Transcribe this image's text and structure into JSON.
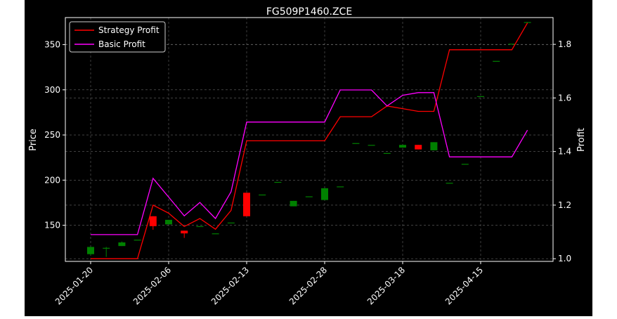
{
  "chart_data": {
    "type": "candlestick+line",
    "title": "FG509P1460.ZCE",
    "ylabel_left": "Price",
    "ylabel_right": "Profit",
    "ylim_left": [
      110,
      380
    ],
    "ylim_right": [
      0.99,
      1.9
    ],
    "yticks_left": [
      150,
      200,
      250,
      300,
      350
    ],
    "yticks_right": [
      1.0,
      1.2,
      1.4,
      1.6,
      1.8
    ],
    "grid": true,
    "legend_position": "upper-left",
    "x_tick_labels": [
      {
        "idx": 0,
        "label": "2025-01-20"
      },
      {
        "idx": 5,
        "label": "2025-02-06"
      },
      {
        "idx": 10,
        "label": "2025-02-13"
      },
      {
        "idx": 15,
        "label": "2025-02-28"
      },
      {
        "idx": 20,
        "label": "2025-03-18"
      },
      {
        "idx": 25,
        "label": "2025-04-15"
      }
    ],
    "candles": [
      {
        "open": 118,
        "high": 126,
        "low": 117,
        "close": 126
      },
      {
        "open": 125,
        "high": 126,
        "low": 115,
        "close": 125
      },
      {
        "open": 127,
        "high": 132,
        "low": 127,
        "close": 131
      },
      {
        "open": 134,
        "high": 134,
        "low": 134,
        "close": 134
      },
      {
        "open": 160,
        "high": 160,
        "low": 145,
        "close": 149
      },
      {
        "open": 151,
        "high": 156,
        "low": 151,
        "close": 156
      },
      {
        "open": 144,
        "high": 144,
        "low": 136,
        "close": 141
      },
      {
        "open": 149,
        "high": 149,
        "low": 149,
        "close": 149
      },
      {
        "open": 141,
        "high": 141,
        "low": 141,
        "close": 141
      },
      {
        "open": 153,
        "high": 153,
        "low": 153,
        "close": 153
      },
      {
        "open": 186,
        "high": 186,
        "low": 160,
        "close": 160
      },
      {
        "open": 184,
        "high": 184,
        "low": 184,
        "close": 184
      },
      {
        "open": 198,
        "high": 198,
        "low": 198,
        "close": 198
      },
      {
        "open": 171,
        "high": 177,
        "low": 171,
        "close": 177
      },
      {
        "open": 182,
        "high": 182,
        "low": 182,
        "close": 182
      },
      {
        "open": 178,
        "high": 191,
        "low": 178,
        "close": 191
      },
      {
        "open": 193,
        "high": 193,
        "low": 193,
        "close": 193
      },
      {
        "open": 241,
        "high": 241,
        "low": 241,
        "close": 241
      },
      {
        "open": 239,
        "high": 239,
        "low": 239,
        "close": 239
      },
      {
        "open": 230,
        "high": 230,
        "low": 230,
        "close": 230
      },
      {
        "open": 236,
        "high": 239,
        "low": 236,
        "close": 239
      },
      {
        "open": 239,
        "high": 239,
        "low": 234,
        "close": 234
      },
      {
        "open": 233,
        "high": 242,
        "low": 233,
        "close": 242
      },
      {
        "open": 197,
        "high": 197,
        "low": 197,
        "close": 197
      },
      {
        "open": 218,
        "high": 218,
        "low": 218,
        "close": 218
      },
      {
        "open": 293,
        "high": 293,
        "low": 293,
        "close": 293
      },
      {
        "open": 332,
        "high": 332,
        "low": 332,
        "close": 332
      },
      {
        "open": 351,
        "high": 351,
        "low": 351,
        "close": 351
      },
      {
        "open": 375,
        "high": 375,
        "low": 375,
        "close": 375
      }
    ],
    "series": [
      {
        "name": "Strategy Profit",
        "color": "#ff0000",
        "values": [
          1.0,
          1.0,
          1.0,
          1.0,
          1.2,
          1.17,
          1.12,
          1.15,
          1.11,
          1.18,
          1.44,
          1.44,
          1.44,
          1.44,
          1.44,
          1.44,
          1.53,
          1.53,
          1.53,
          1.57,
          1.56,
          1.55,
          1.55,
          1.78,
          1.78,
          1.78,
          1.78,
          1.78,
          1.88
        ]
      },
      {
        "name": "Basic Profit",
        "color": "#ff00ff",
        "values": [
          1.09,
          1.09,
          1.09,
          1.09,
          1.3,
          1.23,
          1.16,
          1.21,
          1.15,
          1.25,
          1.51,
          1.51,
          1.51,
          1.51,
          1.51,
          1.51,
          1.63,
          1.63,
          1.63,
          1.57,
          1.61,
          1.62,
          1.62,
          1.38,
          1.38,
          1.38,
          1.38,
          1.38,
          1.48
        ]
      }
    ],
    "up_color": "#008000",
    "down_color": "#ff0000"
  }
}
